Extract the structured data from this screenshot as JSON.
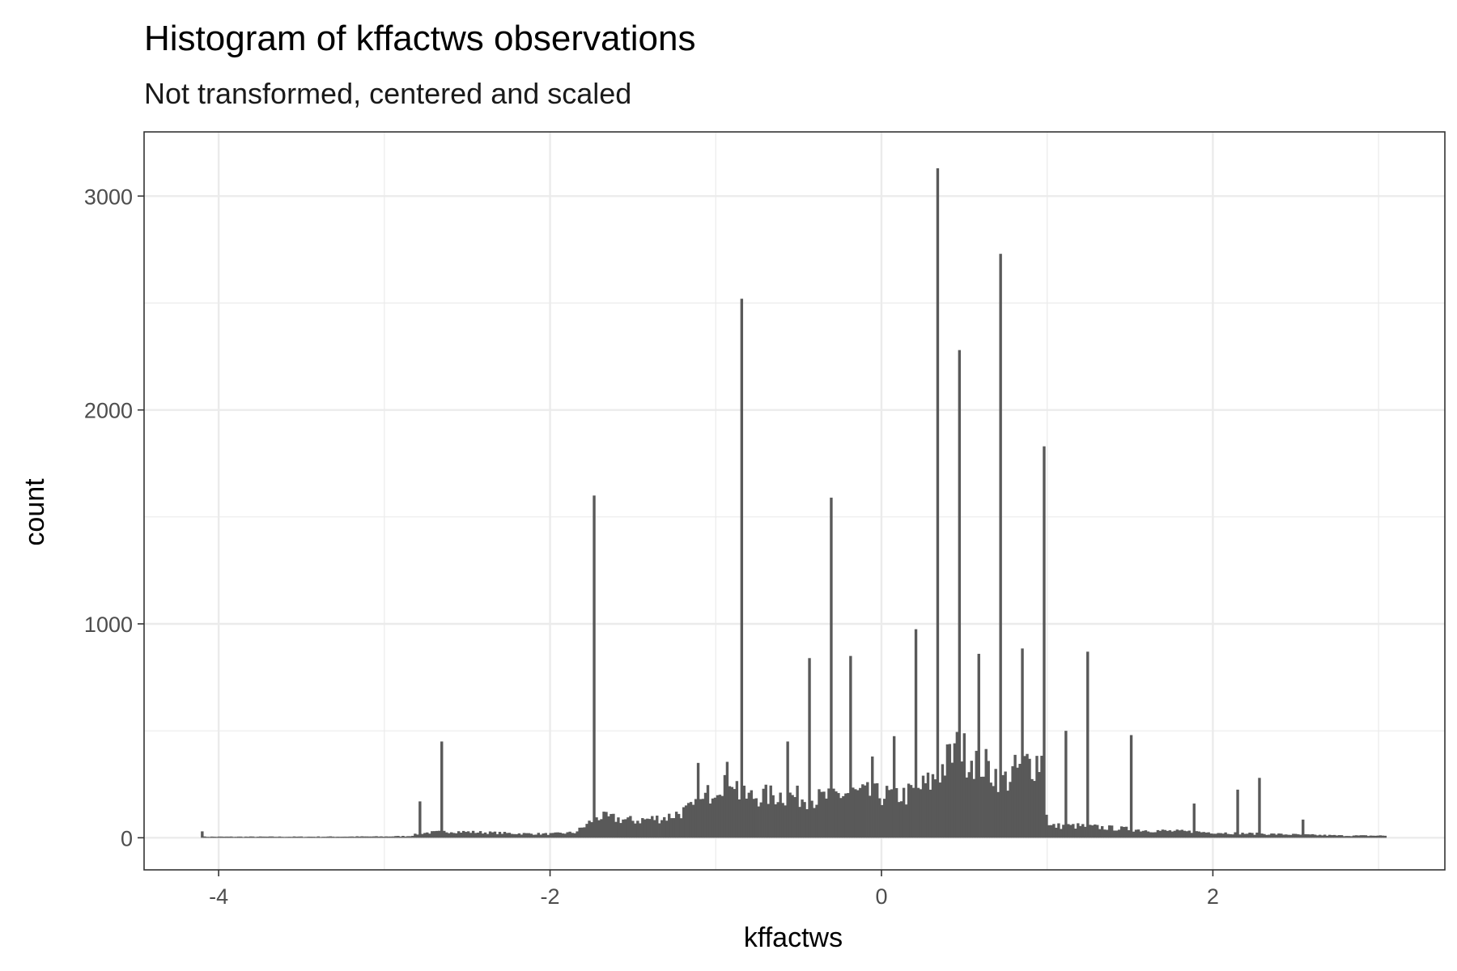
{
  "chart_data": {
    "type": "bar",
    "title": "Histogram of kffactws observations",
    "subtitle": "Not transformed, centered and scaled",
    "xlabel": "kffactws",
    "ylabel": "count",
    "xlim": [
      -4.45,
      3.4
    ],
    "ylim": [
      -150,
      3300
    ],
    "x_ticks": [
      -4,
      -2,
      0,
      2
    ],
    "x_tick_labels": [
      "-4",
      "-2",
      "0",
      "2"
    ],
    "y_ticks": [
      0,
      1000,
      2000,
      3000
    ],
    "y_tick_labels": [
      "0",
      "1000",
      "2000",
      "3000"
    ],
    "grid": true,
    "bar_color": "#595959",
    "panel_border_color": "#333333",
    "grid_color": "#ebebeb",
    "bin_width": 0.0146,
    "baseline_profile": [
      [
        -4.1,
        5
      ],
      [
        -3.5,
        5
      ],
      [
        -3.0,
        6
      ],
      [
        -2.85,
        8
      ],
      [
        -2.78,
        22
      ],
      [
        -2.6,
        30
      ],
      [
        -2.4,
        25
      ],
      [
        -2.2,
        20
      ],
      [
        -2.0,
        18
      ],
      [
        -1.85,
        25
      ],
      [
        -1.78,
        60
      ],
      [
        -1.72,
        100
      ],
      [
        -1.5,
        80
      ],
      [
        -1.3,
        95
      ],
      [
        -1.1,
        150
      ],
      [
        -1.0,
        250
      ],
      [
        -0.9,
        300
      ],
      [
        -0.85,
        190
      ],
      [
        -0.6,
        200
      ],
      [
        -0.4,
        180
      ],
      [
        -0.2,
        210
      ],
      [
        0.0,
        200
      ],
      [
        0.15,
        200
      ],
      [
        0.3,
        260
      ],
      [
        0.45,
        410
      ],
      [
        0.55,
        380
      ],
      [
        0.65,
        320
      ],
      [
        0.75,
        270
      ],
      [
        0.85,
        340
      ],
      [
        0.98,
        370
      ],
      [
        1.0,
        55
      ],
      [
        1.2,
        55
      ],
      [
        1.4,
        45
      ],
      [
        1.6,
        35
      ],
      [
        1.8,
        30
      ],
      [
        2.0,
        25
      ],
      [
        2.2,
        20
      ],
      [
        2.5,
        15
      ],
      [
        2.8,
        10
      ],
      [
        3.05,
        10
      ]
    ],
    "spikes": [
      {
        "x": -4.1,
        "y": 30
      },
      {
        "x": -2.78,
        "y": 170
      },
      {
        "x": -2.65,
        "y": 450
      },
      {
        "x": -1.74,
        "y": 1600
      },
      {
        "x": -1.1,
        "y": 350
      },
      {
        "x": -0.84,
        "y": 2520
      },
      {
        "x": -0.56,
        "y": 450
      },
      {
        "x": -0.44,
        "y": 840
      },
      {
        "x": -0.31,
        "y": 1590
      },
      {
        "x": -0.18,
        "y": 850
      },
      {
        "x": -0.05,
        "y": 380
      },
      {
        "x": 0.08,
        "y": 475
      },
      {
        "x": 0.21,
        "y": 975
      },
      {
        "x": 0.34,
        "y": 3130
      },
      {
        "x": 0.47,
        "y": 2280
      },
      {
        "x": 0.59,
        "y": 860
      },
      {
        "x": 0.72,
        "y": 2730
      },
      {
        "x": 0.85,
        "y": 885
      },
      {
        "x": 0.98,
        "y": 1830
      },
      {
        "x": 1.11,
        "y": 500
      },
      {
        "x": 1.25,
        "y": 870
      },
      {
        "x": 1.51,
        "y": 480
      },
      {
        "x": 1.89,
        "y": 160
      },
      {
        "x": 2.15,
        "y": 225
      },
      {
        "x": 2.28,
        "y": 280
      },
      {
        "x": 2.54,
        "y": 85
      },
      {
        "x": 3.05,
        "y": 60
      }
    ]
  }
}
